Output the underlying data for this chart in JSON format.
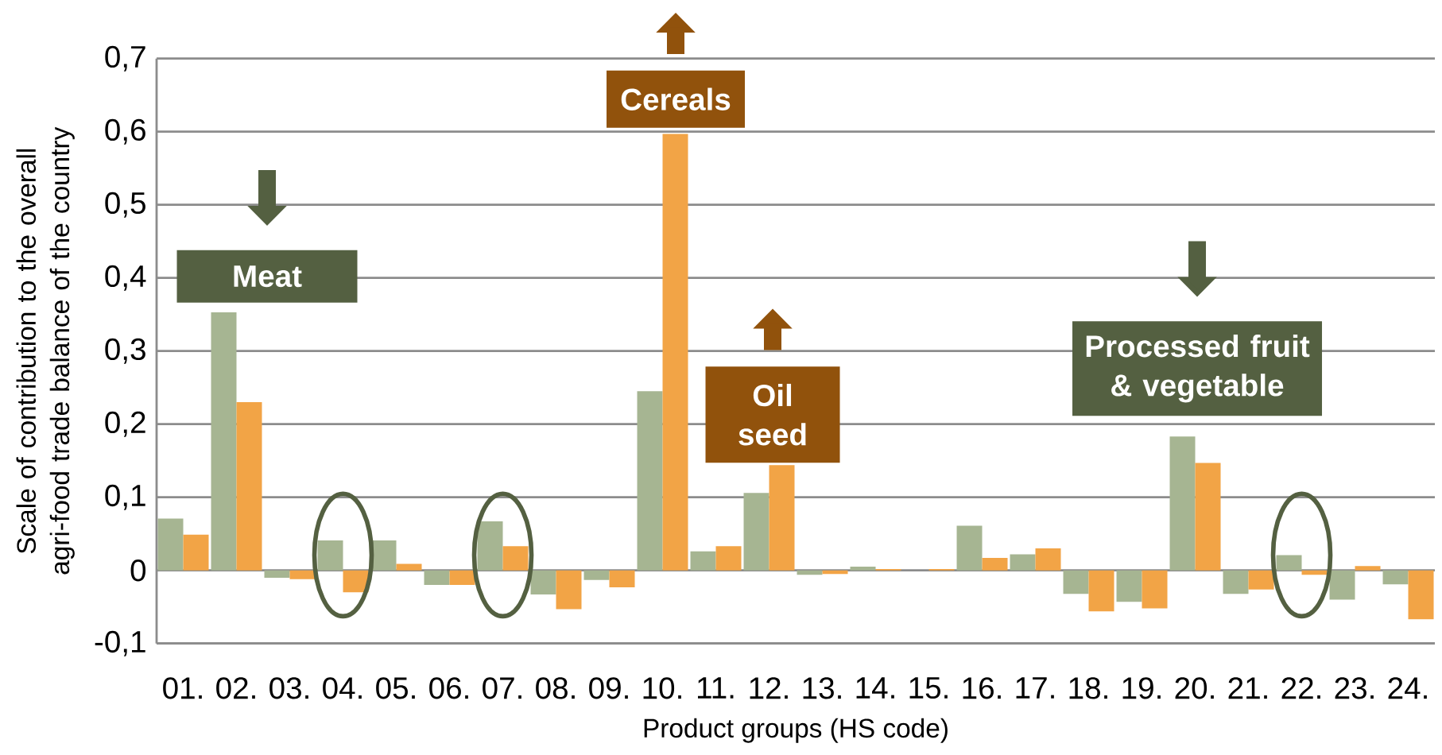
{
  "chart_data": {
    "type": "bar",
    "xlabel": "Product groups (HS code)",
    "ylabel": "Scale of contribution to the overall agri-food trade balance of the country",
    "categories": [
      "01.",
      "02.",
      "03.",
      "04.",
      "05.",
      "06.",
      "07.",
      "08.",
      "09.",
      "10.",
      "11.",
      "12.",
      "13.",
      "14.",
      "15.",
      "16.",
      "17.",
      "18.",
      "19.",
      "20.",
      "21.",
      "22.",
      "23.",
      "24."
    ],
    "series": [
      {
        "color": "#a6b592",
        "values": [
          0.071,
          0.353,
          -0.01,
          0.041,
          0.041,
          -0.02,
          0.067,
          -0.033,
          -0.013,
          0.245,
          0.026,
          0.106,
          -0.006,
          0.005,
          0,
          0.061,
          0.022,
          -0.032,
          -0.043,
          0.183,
          -0.032,
          0.021,
          -0.04,
          -0.019
        ]
      },
      {
        "color": "#f2a446",
        "values": [
          0.049,
          0.23,
          -0.012,
          -0.03,
          0.009,
          -0.02,
          0.033,
          -0.053,
          -0.023,
          0.597,
          0.033,
          0.144,
          -0.005,
          0.002,
          0.002,
          0.017,
          0.03,
          -0.056,
          -0.052,
          0.147,
          -0.026,
          -0.006,
          0.006,
          -0.067
        ]
      }
    ],
    "ylim": [
      -0.1,
      0.7
    ],
    "yticks": [
      {
        "value": -0.1,
        "label": "-0,1"
      },
      0,
      {
        "value": 0.1,
        "label": "0,1"
      },
      {
        "value": 0.2,
        "label": "0,2"
      },
      {
        "value": 0.3,
        "label": "0,3"
      },
      {
        "value": 0.4,
        "label": "0,4"
      },
      {
        "value": 0.5,
        "label": "0,5"
      },
      {
        "value": 0.6,
        "label": "0,6"
      },
      {
        "value": 0.7,
        "label": "0,7"
      }
    ],
    "grid": "y",
    "annotations": [
      "Meat",
      "Cereals",
      "Oil seed",
      "Processed fruit & vegetable"
    ]
  }
}
